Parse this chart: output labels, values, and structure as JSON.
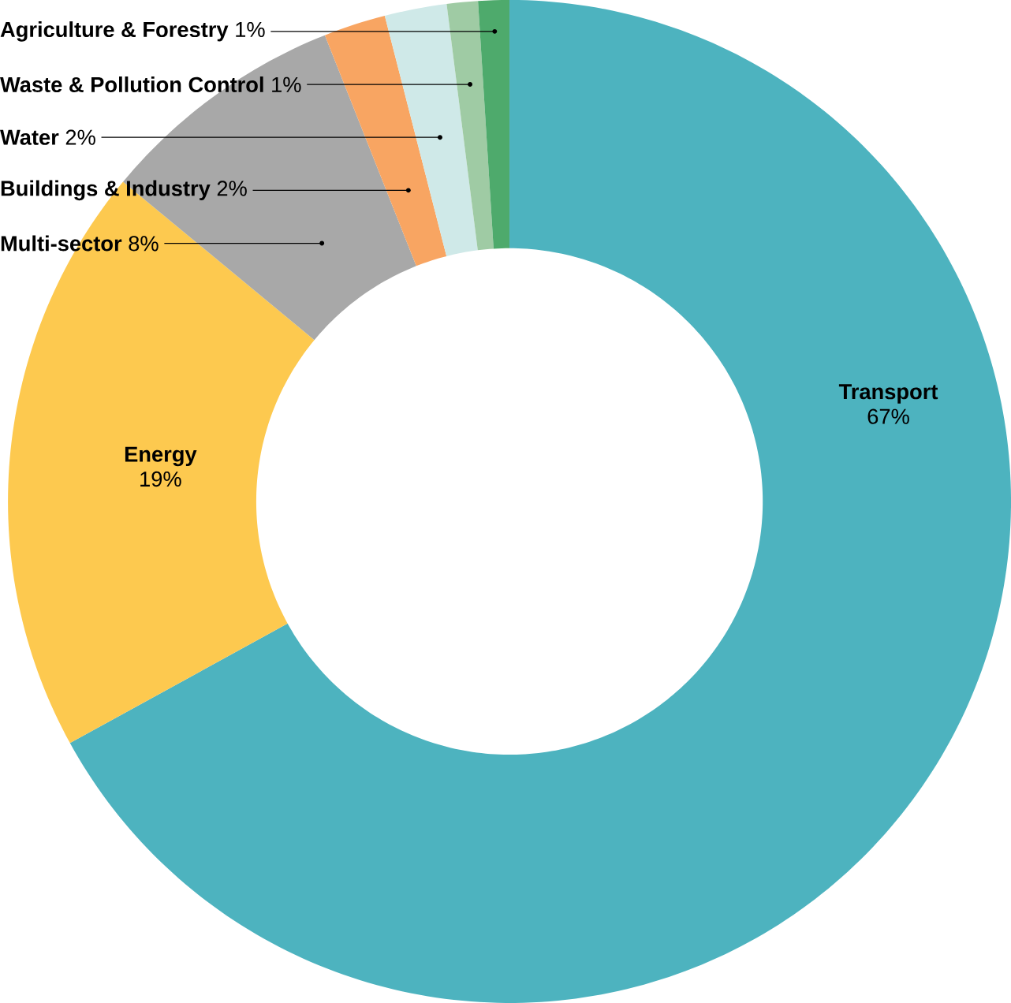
{
  "chart_data": {
    "type": "donut",
    "categories": [
      "Transport",
      "Energy",
      "Multi-sector",
      "Buildings & Industry",
      "Water",
      "Waste & Pollution Control",
      "Agriculture & Forestry"
    ],
    "values": [
      67,
      19,
      8,
      2,
      2,
      1,
      1
    ],
    "value_labels": [
      "67%",
      "19%",
      "8%",
      "2%",
      "2%",
      "1%",
      "1%"
    ],
    "colors": [
      "#4db3bf",
      "#fdc94f",
      "#a8a8a8",
      "#f8a562",
      "#cfe9e8",
      "#9fcba4",
      "#4eaa6c"
    ]
  }
}
